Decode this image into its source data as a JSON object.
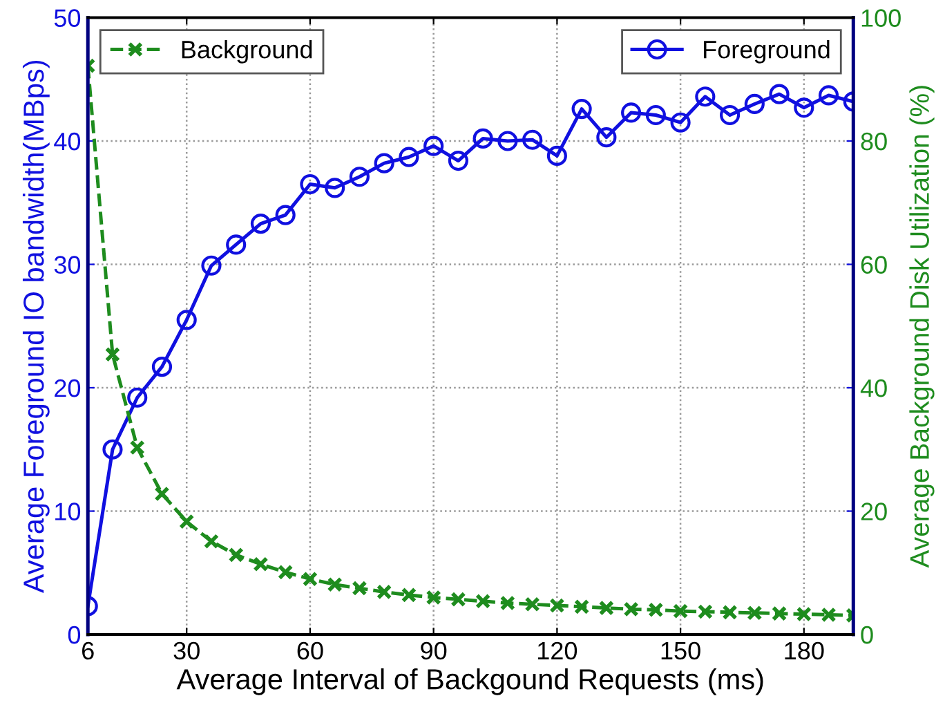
{
  "chart_data": {
    "type": "line",
    "xlabel": "Average Interval of Backgound Requests (ms)",
    "ylabel": "Average Foreground IO bandwidth(MBps)",
    "y2label": "Average Background Disk Utilization (%)",
    "x": [
      6,
      12,
      18,
      24,
      30,
      36,
      42,
      48,
      54,
      60,
      66,
      72,
      78,
      84,
      90,
      96,
      102,
      108,
      114,
      120,
      126,
      132,
      138,
      144,
      150,
      156,
      162,
      168,
      174,
      180,
      186,
      192
    ],
    "series": [
      {
        "name": "Foreground",
        "color": "#1010e0",
        "marker": "circle",
        "line_style": "solid",
        "axis": "y",
        "values": [
          2.3,
          15.0,
          19.2,
          21.7,
          25.5,
          29.9,
          31.6,
          33.3,
          34.0,
          36.5,
          36.2,
          37.1,
          38.2,
          38.7,
          39.6,
          38.4,
          40.2,
          40.0,
          40.1,
          38.8,
          42.6,
          40.3,
          42.3,
          42.1,
          41.5,
          43.6,
          42.1,
          43.0,
          43.8,
          42.7,
          43.7,
          43.2
        ]
      },
      {
        "name": "Background",
        "color": "#1e8c1e",
        "marker": "cross",
        "line_style": "dashed",
        "axis": "y2",
        "values": [
          92.2,
          45.4,
          30.3,
          22.8,
          18.3,
          15.1,
          12.9,
          11.4,
          10.1,
          9.0,
          8.1,
          7.5,
          6.9,
          6.4,
          6.0,
          5.7,
          5.4,
          5.1,
          4.9,
          4.7,
          4.5,
          4.3,
          4.1,
          4.0,
          3.8,
          3.7,
          3.6,
          3.5,
          3.4,
          3.3,
          3.2,
          3.1
        ]
      }
    ],
    "xlim": [
      6,
      192
    ],
    "xticks": [
      6,
      30,
      60,
      90,
      120,
      150,
      180
    ],
    "ylim": [
      0,
      50
    ],
    "yticks": [
      0,
      10,
      20,
      30,
      40,
      50
    ],
    "y2lim": [
      0,
      100
    ],
    "y2ticks": [
      0,
      20,
      40,
      60,
      80,
      100
    ],
    "grid": true,
    "legend": "top"
  }
}
